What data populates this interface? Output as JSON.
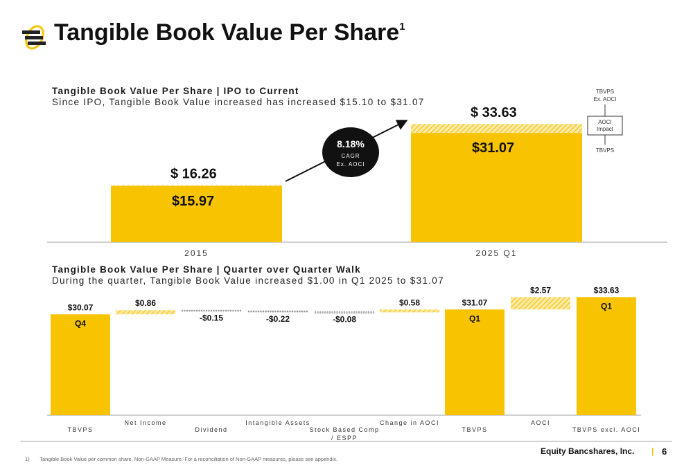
{
  "header": {
    "title": "Tangible Book Value Per Share",
    "title_sup": "1"
  },
  "colors": {
    "accent": "#F8C300",
    "dark": "#111111"
  },
  "top_chart": {
    "title": "Tangible Book Value Per Share | IPO to Current",
    "subtitle": "Since IPO, Tangible Book Value increased has increased $15.10 to $31.07",
    "cagr": {
      "value": "8.18%",
      "label1": "CAGR",
      "label2": "Ex. AOCI"
    },
    "legend": {
      "top": [
        "TBVPS",
        "Ex. AOCI"
      ],
      "box": [
        "AOCI",
        "Impact"
      ],
      "bottom": "TBVPS"
    }
  },
  "bottom_chart": {
    "title": "Tangible Book Value Per Share | Quarter over Quarter Walk",
    "subtitle": "During the quarter, Tangible Book Value increased $1.00 in Q1 2025 to $31.07"
  },
  "chart_data": [
    {
      "type": "bar",
      "categories": [
        "2015",
        "2025 Q1"
      ],
      "series": [
        {
          "name": "TBVPS",
          "values": [
            15.97,
            31.07
          ],
          "labels": [
            "$15.97",
            "$31.07"
          ]
        },
        {
          "name": "AOCI Impact",
          "values": [
            0.29,
            2.56
          ]
        }
      ],
      "totals": [
        16.26,
        33.63
      ],
      "total_labels": [
        "$ 16.26",
        "$ 33.63"
      ],
      "stacked": true
    },
    {
      "type": "bar",
      "subtype": "waterfall",
      "categories": [
        "TBVPS",
        "Net Income",
        "Dividend",
        "Intangible Assets",
        "Stock Based Comp / ESPP",
        "Change in AOCI",
        "TBVPS",
        "AOCI",
        "TBVPS excl. AOCI"
      ],
      "steps": [
        {
          "kind": "total",
          "value": 30.07,
          "label": "$30.07",
          "inner": "Q4"
        },
        {
          "kind": "delta",
          "value": 0.86,
          "label": "$0.86"
        },
        {
          "kind": "delta",
          "value": -0.15,
          "label": "-$0.15"
        },
        {
          "kind": "delta",
          "value": -0.22,
          "label": "-$0.22"
        },
        {
          "kind": "delta",
          "value": -0.08,
          "label": "-$0.08"
        },
        {
          "kind": "delta",
          "value": 0.58,
          "label": "$0.58"
        },
        {
          "kind": "total",
          "value": 31.07,
          "label": "$31.07",
          "inner": "Q1"
        },
        {
          "kind": "delta",
          "value": 2.57,
          "label": "$2.57"
        },
        {
          "kind": "total",
          "value": 33.63,
          "label": "$33.63",
          "inner": "Q1"
        }
      ]
    }
  ],
  "footer": {
    "footnote_num": "1)",
    "footnote": "Tangible Book Value per common share. Non-GAAP Measure. For a reconciliation of Non-GAAP measures, please see appendix.",
    "company": "Equity Bancshares, Inc.",
    "separator": "|",
    "page": "6"
  }
}
